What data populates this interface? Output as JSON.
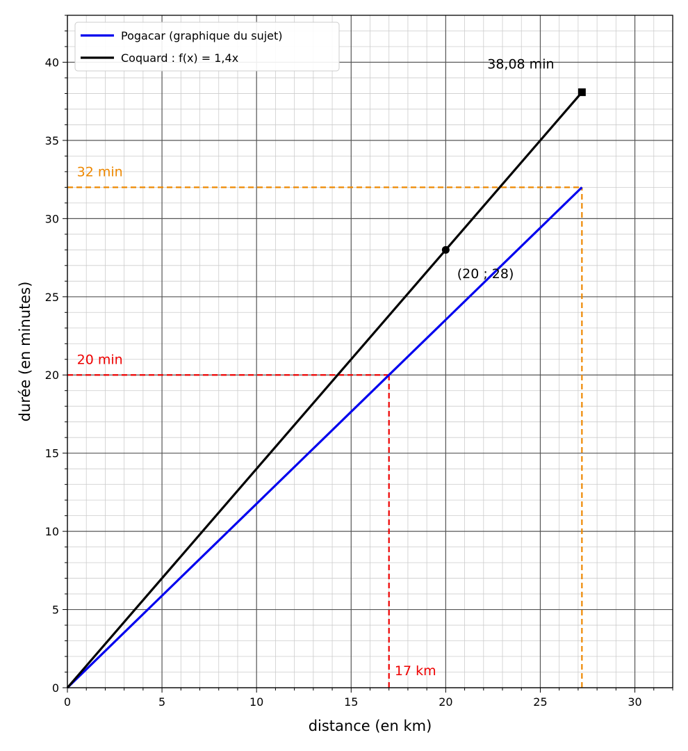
{
  "chart_data": {
    "type": "line",
    "xlabel": "distance (en km)",
    "ylabel": "durée (en minutes)",
    "xlim": [
      0,
      32
    ],
    "ylim": [
      0,
      43
    ],
    "x_ticks": [
      0,
      5,
      10,
      15,
      20,
      25,
      30
    ],
    "y_ticks": [
      0,
      5,
      10,
      15,
      20,
      25,
      30,
      35,
      40
    ],
    "grid": {
      "major": true,
      "minor": true,
      "major_color": "#555555",
      "minor_color": "#cccccc"
    },
    "legend_position": "top-left",
    "series": [
      {
        "name": "Pogacar (graphique du sujet)",
        "color": "#0000ee",
        "x": [
          0,
          27.2
        ],
        "y": [
          0,
          32
        ]
      },
      {
        "name": "Coquard : f(x) = 1,4x",
        "color": "#000000",
        "x": [
          0,
          27.2
        ],
        "y": [
          0,
          38.08
        ]
      }
    ],
    "markers": [
      {
        "id": "point-20-28",
        "shape": "circle",
        "x": 20,
        "y": 28,
        "color": "#000000"
      },
      {
        "id": "end-square",
        "shape": "square",
        "x": 27.2,
        "y": 38.08,
        "color": "#000000"
      }
    ],
    "reference_lines": [
      {
        "id": "red-horizontal",
        "color": "#ee0000",
        "x1": 0,
        "y1": 20,
        "x2": 17,
        "y2": 20
      },
      {
        "id": "red-vertical",
        "color": "#ee0000",
        "x1": 17,
        "y1": 0,
        "x2": 17,
        "y2": 20
      },
      {
        "id": "orange-horizontal",
        "color": "#ee8800",
        "x1": 0,
        "y1": 32,
        "x2": 27.2,
        "y2": 32
      },
      {
        "id": "orange-vertical",
        "color": "#ee8800",
        "x1": 27.2,
        "y1": 0,
        "x2": 27.2,
        "y2": 32
      }
    ],
    "annotations": [
      {
        "id": "label-20-min",
        "text": "20 min",
        "x": 0.5,
        "y": 20.7,
        "color": "#ee0000",
        "anchor": "start"
      },
      {
        "id": "label-17-km",
        "text": "17 km",
        "x": 17.3,
        "y": 0.8,
        "color": "#ee0000",
        "anchor": "start"
      },
      {
        "id": "label-32-min",
        "text": "32 min",
        "x": 0.5,
        "y": 32.7,
        "color": "#ee8800",
        "anchor": "start"
      },
      {
        "id": "label-point",
        "text": "(20 ; 28)",
        "x": 20.6,
        "y": 26.2,
        "color": "#000000",
        "anchor": "start"
      },
      {
        "id": "label-38-min",
        "text": "38,08 min",
        "x": 22.2,
        "y": 39.6,
        "color": "#000000",
        "anchor": "start"
      }
    ]
  }
}
